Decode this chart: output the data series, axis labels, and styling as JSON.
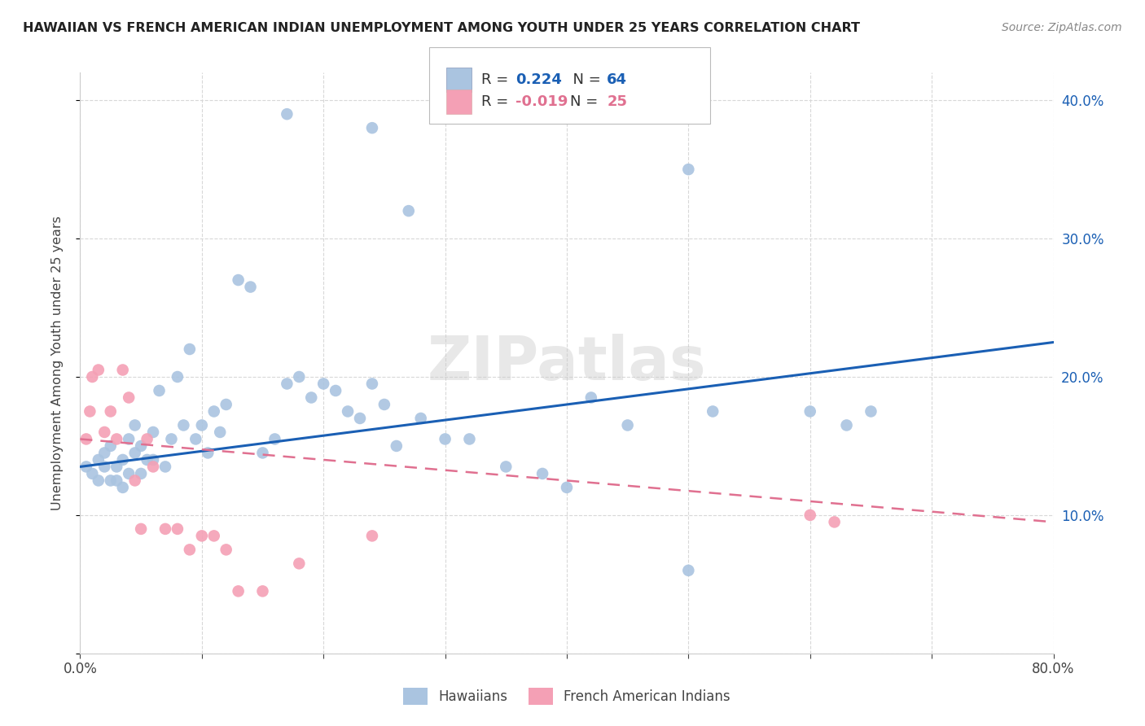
{
  "title": "HAWAIIAN VS FRENCH AMERICAN INDIAN UNEMPLOYMENT AMONG YOUTH UNDER 25 YEARS CORRELATION CHART",
  "source": "Source: ZipAtlas.com",
  "ylabel": "Unemployment Among Youth under 25 years",
  "xlim": [
    0.0,
    0.8
  ],
  "ylim": [
    0.0,
    0.42
  ],
  "xticks": [
    0.0,
    0.1,
    0.2,
    0.3,
    0.4,
    0.5,
    0.6,
    0.7,
    0.8
  ],
  "xticklabels": [
    "0.0%",
    "",
    "",
    "",
    "",
    "",
    "",
    "",
    "80.0%"
  ],
  "yticks": [
    0.0,
    0.1,
    0.2,
    0.3,
    0.4
  ],
  "yticklabels": [
    "",
    "10.0%",
    "20.0%",
    "30.0%",
    "40.0%"
  ],
  "hawaiian_R": 0.224,
  "hawaiian_N": 64,
  "french_R": -0.019,
  "french_N": 25,
  "hawaiian_color": "#aac4e0",
  "french_color": "#f4a0b5",
  "hawaiian_line_color": "#1a5fb4",
  "french_line_color": "#e07090",
  "watermark": "ZIPatlas",
  "hawaiian_x": [
    0.005,
    0.01,
    0.015,
    0.015,
    0.02,
    0.02,
    0.025,
    0.025,
    0.03,
    0.03,
    0.035,
    0.035,
    0.04,
    0.04,
    0.045,
    0.045,
    0.05,
    0.05,
    0.055,
    0.06,
    0.06,
    0.065,
    0.07,
    0.075,
    0.08,
    0.085,
    0.09,
    0.095,
    0.1,
    0.105,
    0.11,
    0.115,
    0.12,
    0.13,
    0.14,
    0.15,
    0.16,
    0.17,
    0.18,
    0.19,
    0.2,
    0.21,
    0.22,
    0.23,
    0.24,
    0.25,
    0.26,
    0.28,
    0.3,
    0.32,
    0.35,
    0.38,
    0.4,
    0.42,
    0.45,
    0.5,
    0.52,
    0.6,
    0.63,
    0.65,
    0.17,
    0.24,
    0.27,
    0.5
  ],
  "hawaiian_y": [
    0.135,
    0.13,
    0.125,
    0.14,
    0.135,
    0.145,
    0.125,
    0.15,
    0.125,
    0.135,
    0.14,
    0.12,
    0.155,
    0.13,
    0.145,
    0.165,
    0.13,
    0.15,
    0.14,
    0.16,
    0.14,
    0.19,
    0.135,
    0.155,
    0.2,
    0.165,
    0.22,
    0.155,
    0.165,
    0.145,
    0.175,
    0.16,
    0.18,
    0.27,
    0.265,
    0.145,
    0.155,
    0.195,
    0.2,
    0.185,
    0.195,
    0.19,
    0.175,
    0.17,
    0.195,
    0.18,
    0.15,
    0.17,
    0.155,
    0.155,
    0.135,
    0.13,
    0.12,
    0.185,
    0.165,
    0.06,
    0.175,
    0.175,
    0.165,
    0.175,
    0.39,
    0.38,
    0.32,
    0.35
  ],
  "french_x": [
    0.005,
    0.008,
    0.01,
    0.015,
    0.02,
    0.025,
    0.03,
    0.035,
    0.04,
    0.045,
    0.05,
    0.055,
    0.06,
    0.07,
    0.08,
    0.09,
    0.1,
    0.11,
    0.12,
    0.13,
    0.15,
    0.18,
    0.24,
    0.6,
    0.62
  ],
  "french_y": [
    0.155,
    0.175,
    0.2,
    0.205,
    0.16,
    0.175,
    0.155,
    0.205,
    0.185,
    0.125,
    0.09,
    0.155,
    0.135,
    0.09,
    0.09,
    0.075,
    0.085,
    0.085,
    0.075,
    0.045,
    0.045,
    0.065,
    0.085,
    0.1,
    0.095
  ],
  "background_color": "#ffffff",
  "grid_color": "#d8d8d8"
}
